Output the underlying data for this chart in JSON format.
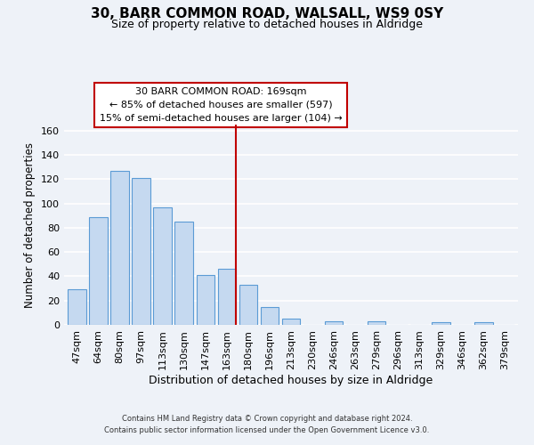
{
  "title": "30, BARR COMMON ROAD, WALSALL, WS9 0SY",
  "subtitle": "Size of property relative to detached houses in Aldridge",
  "xlabel": "Distribution of detached houses by size in Aldridge",
  "ylabel": "Number of detached properties",
  "bar_labels": [
    "47sqm",
    "64sqm",
    "80sqm",
    "97sqm",
    "113sqm",
    "130sqm",
    "147sqm",
    "163sqm",
    "180sqm",
    "196sqm",
    "213sqm",
    "230sqm",
    "246sqm",
    "263sqm",
    "279sqm",
    "296sqm",
    "313sqm",
    "329sqm",
    "346sqm",
    "362sqm",
    "379sqm"
  ],
  "bar_values": [
    29,
    89,
    127,
    121,
    97,
    85,
    41,
    46,
    33,
    15,
    5,
    0,
    3,
    0,
    3,
    0,
    0,
    2,
    0,
    2,
    0
  ],
  "bar_color": "#c5d9f0",
  "bar_edge_color": "#5b9bd5",
  "highlight_index": 7,
  "highlight_line_color": "#c00000",
  "annotation_title": "30 BARR COMMON ROAD: 169sqm",
  "annotation_line1": "← 85% of detached houses are smaller (597)",
  "annotation_line2": "15% of semi-detached houses are larger (104) →",
  "annotation_box_color": "#ffffff",
  "annotation_box_edge": "#c00000",
  "ylim": [
    0,
    165
  ],
  "yticks": [
    0,
    20,
    40,
    60,
    80,
    100,
    120,
    140,
    160
  ],
  "footer_line1": "Contains HM Land Registry data © Crown copyright and database right 2024.",
  "footer_line2": "Contains public sector information licensed under the Open Government Licence v3.0.",
  "background_color": "#eef2f8",
  "grid_color": "#ffffff"
}
